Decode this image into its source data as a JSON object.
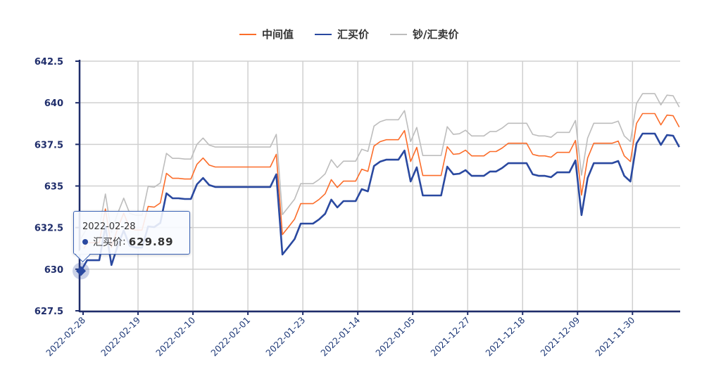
{
  "legend": [
    {
      "label": "中间值",
      "color": "#fb6d2a"
    },
    {
      "label": "汇买价",
      "color": "#2a49a0"
    },
    {
      "label": "钞/汇卖价",
      "color": "#bdbdbd"
    }
  ],
  "tooltip": {
    "date": "2022-02-28",
    "series": "汇买价",
    "separator": ":",
    "value": "629.89"
  },
  "chart_data": {
    "type": "line",
    "title": "",
    "xlabel": "",
    "ylabel": "",
    "ylim": [
      627.5,
      642.5
    ],
    "y_ticks": [
      "627.5",
      "630",
      "632.5",
      "635",
      "637.5",
      "640",
      "642.5"
    ],
    "x_tick_labels": [
      "2022-02-28",
      "2022-02-19",
      "2022-02-10",
      "2022-02-01",
      "2022-01-23",
      "2022-01-14",
      "2022-01-05",
      "2021-12-27",
      "2021-12-18",
      "2021-12-09",
      "2021-11-30"
    ],
    "grid": true,
    "legend_position": "top",
    "x": [
      "2022-02-28",
      "2022-02-27",
      "2022-02-26",
      "2022-02-25",
      "2022-02-24",
      "2022-02-23",
      "2022-02-22",
      "2022-02-21",
      "2022-02-20",
      "2022-02-19",
      "2022-02-18",
      "2022-02-17",
      "2022-02-16",
      "2022-02-15",
      "2022-02-14",
      "2022-02-13",
      "2022-02-12",
      "2022-02-11",
      "2022-02-10",
      "2022-02-09",
      "2022-02-08",
      "2022-02-07",
      "2022-02-06",
      "2022-02-05",
      "2022-02-04",
      "2022-02-03",
      "2022-02-02",
      "2022-02-01",
      "2022-01-31",
      "2022-01-30",
      "2022-01-29",
      "2022-01-28",
      "2022-01-27",
      "2022-01-26",
      "2022-01-25",
      "2022-01-24",
      "2022-01-23",
      "2022-01-22",
      "2022-01-21",
      "2022-01-20",
      "2022-01-19",
      "2022-01-18",
      "2022-01-17",
      "2022-01-16",
      "2022-01-15",
      "2022-01-14",
      "2022-01-13",
      "2022-01-12",
      "2022-01-11",
      "2022-01-10",
      "2022-01-09",
      "2022-01-08",
      "2022-01-07",
      "2022-01-06",
      "2022-01-05",
      "2022-01-04",
      "2022-01-03",
      "2022-01-02",
      "2022-01-01",
      "2021-12-31",
      "2021-12-30",
      "2021-12-29",
      "2021-12-28",
      "2021-12-27",
      "2021-12-26",
      "2021-12-25",
      "2021-12-24",
      "2021-12-23",
      "2021-12-22",
      "2021-12-21",
      "2021-12-20",
      "2021-12-19",
      "2021-12-18",
      "2021-12-17",
      "2021-12-16",
      "2021-12-15",
      "2021-12-14",
      "2021-12-13",
      "2021-12-12",
      "2021-12-11",
      "2021-12-10",
      "2021-12-09",
      "2021-12-08",
      "2021-12-07",
      "2021-12-06",
      "2021-12-05",
      "2021-12-04",
      "2021-12-03",
      "2021-12-02",
      "2021-12-01",
      "2021-11-30",
      "2021-11-29",
      "2021-11-28",
      "2021-11-27",
      "2021-11-26",
      "2021-11-25",
      "2021-11-24",
      "2021-11-23",
      "2021-11-22"
    ],
    "series": [
      {
        "name": "中间值",
        "color": "#fb6d2a",
        "values": [
          630.94,
          631.59,
          631.59,
          631.59,
          633.62,
          631.3,
          632.44,
          633.37,
          632.44,
          632.35,
          632.35,
          633.77,
          633.73,
          633.98,
          635.76,
          635.46,
          635.46,
          635.42,
          635.42,
          636.3,
          636.68,
          636.26,
          636.14,
          636.14,
          636.14,
          636.14,
          636.14,
          636.14,
          636.14,
          636.14,
          636.14,
          636.14,
          636.9,
          632.08,
          632.54,
          633.01,
          633.94,
          633.94,
          633.94,
          634.19,
          634.53,
          635.38,
          634.91,
          635.29,
          635.29,
          635.29,
          636.01,
          635.88,
          637.4,
          637.66,
          637.78,
          637.78,
          637.78,
          638.33,
          636.47,
          637.32,
          635.63,
          635.63,
          635.63,
          635.63,
          637.36,
          636.9,
          636.94,
          637.15,
          636.81,
          636.81,
          636.81,
          637.07,
          637.07,
          637.28,
          637.57,
          637.57,
          637.57,
          637.57,
          636.9,
          636.81,
          636.81,
          636.73,
          637.02,
          637.02,
          637.02,
          637.74,
          634.45,
          636.68,
          637.57,
          637.57,
          637.57,
          637.57,
          637.7,
          636.81,
          636.47,
          638.76,
          639.35,
          639.35,
          639.35,
          638.67,
          639.26,
          639.22,
          638.54
        ]
      },
      {
        "name": "汇买价",
        "color": "#2a49a0",
        "values": [
          629.89,
          630.54,
          630.54,
          630.54,
          632.57,
          630.25,
          631.39,
          632.32,
          631.39,
          631.3,
          631.3,
          632.57,
          632.53,
          632.78,
          634.56,
          634.26,
          634.26,
          634.22,
          634.22,
          635.1,
          635.48,
          635.06,
          634.94,
          634.94,
          634.94,
          634.94,
          634.94,
          634.94,
          634.94,
          634.94,
          634.94,
          634.94,
          635.7,
          630.88,
          631.34,
          631.81,
          632.74,
          632.74,
          632.74,
          632.99,
          633.33,
          634.18,
          633.71,
          634.09,
          634.09,
          634.09,
          634.81,
          634.68,
          636.2,
          636.46,
          636.58,
          636.58,
          636.58,
          637.13,
          635.27,
          636.12,
          634.43,
          634.43,
          634.43,
          634.43,
          636.16,
          635.7,
          635.74,
          635.95,
          635.61,
          635.61,
          635.61,
          635.87,
          635.87,
          636.08,
          636.37,
          636.37,
          636.37,
          636.37,
          635.7,
          635.61,
          635.61,
          635.53,
          635.82,
          635.82,
          635.82,
          636.54,
          633.25,
          635.48,
          636.37,
          636.37,
          636.37,
          636.37,
          636.5,
          635.61,
          635.27,
          637.56,
          638.15,
          638.15,
          638.15,
          637.47,
          638.06,
          638.02,
          637.34
        ]
      },
      {
        "name": "钞/汇卖价",
        "color": "#bdbdbd",
        "values": [
          631.84,
          632.49,
          632.49,
          632.49,
          634.52,
          632.2,
          633.34,
          634.27,
          633.34,
          633.25,
          633.25,
          634.97,
          634.93,
          635.18,
          636.96,
          636.66,
          636.66,
          636.62,
          636.62,
          637.5,
          637.88,
          637.46,
          637.34,
          637.34,
          637.34,
          637.34,
          637.34,
          637.34,
          637.34,
          637.34,
          637.34,
          637.34,
          638.1,
          633.28,
          633.74,
          634.21,
          635.14,
          635.14,
          635.14,
          635.39,
          635.73,
          636.58,
          636.11,
          636.49,
          636.49,
          636.49,
          637.21,
          637.08,
          638.6,
          638.86,
          638.98,
          638.98,
          638.98,
          639.53,
          637.67,
          638.52,
          636.83,
          636.83,
          636.83,
          636.83,
          638.56,
          638.1,
          638.14,
          638.35,
          638.01,
          638.01,
          638.01,
          638.27,
          638.27,
          638.48,
          638.77,
          638.77,
          638.77,
          638.77,
          638.1,
          638.01,
          638.01,
          637.93,
          638.22,
          638.22,
          638.22,
          638.94,
          635.65,
          637.88,
          638.77,
          638.77,
          638.77,
          638.77,
          638.9,
          638.01,
          637.67,
          639.96,
          640.55,
          640.55,
          640.55,
          639.87,
          640.46,
          640.42,
          639.74
        ]
      }
    ],
    "highlighted_point": {
      "series": "汇买价",
      "x": "2022-02-28",
      "y": 629.89
    }
  }
}
